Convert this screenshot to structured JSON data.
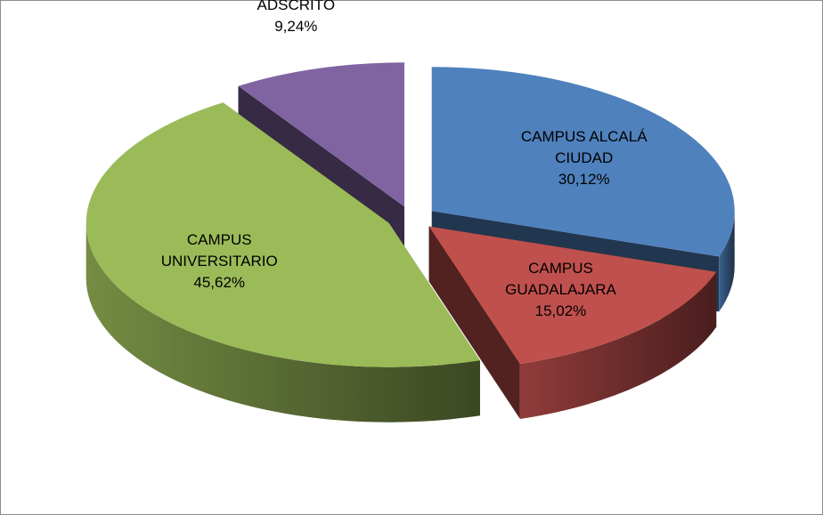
{
  "chart_data": {
    "type": "pie",
    "categories": [
      "CAMPUS ALCALÁ CIUDAD",
      "CAMPUS GUADALAJARA",
      "CAMPUS UNIVERSITARIO",
      "ADSCRITO"
    ],
    "values": [
      30.12,
      15.02,
      45.62,
      9.24
    ],
    "value_labels": [
      "30,12%",
      "15,02%",
      "45,62%",
      "9,24%"
    ],
    "colors": [
      "#4f81bd",
      "#c0504d",
      "#9bbb59",
      "#8064a2"
    ]
  }
}
